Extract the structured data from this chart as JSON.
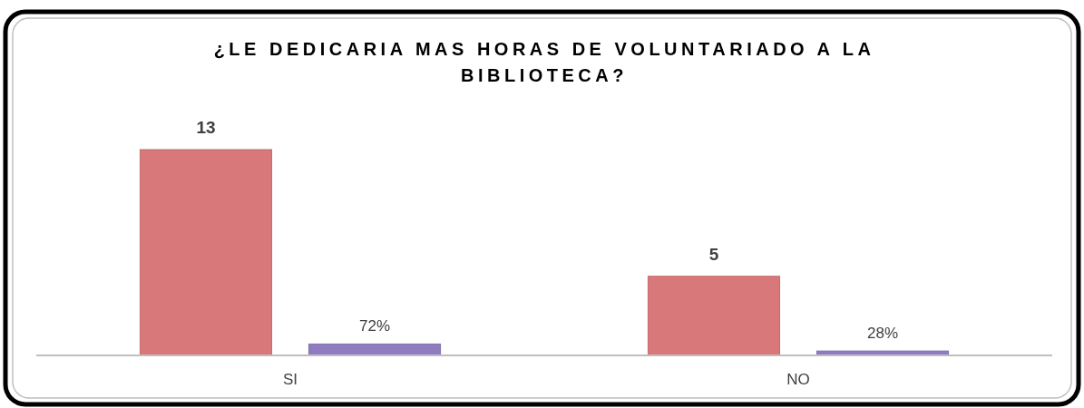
{
  "chart_data": {
    "type": "bar",
    "title": "¿LE DEDICARIA MAS HORAS DE VOLUNTARIADO A LA BIBLIOTECA?",
    "categories": [
      "SI",
      "NO"
    ],
    "series": [
      {
        "color": "#d9787a",
        "values": [
          13,
          5
        ],
        "value_labels": [
          "13",
          "5"
        ]
      },
      {
        "color": "#8f7cc0",
        "values": [
          0.72,
          0.28
        ],
        "value_labels": [
          "72%",
          "28%"
        ]
      }
    ]
  }
}
